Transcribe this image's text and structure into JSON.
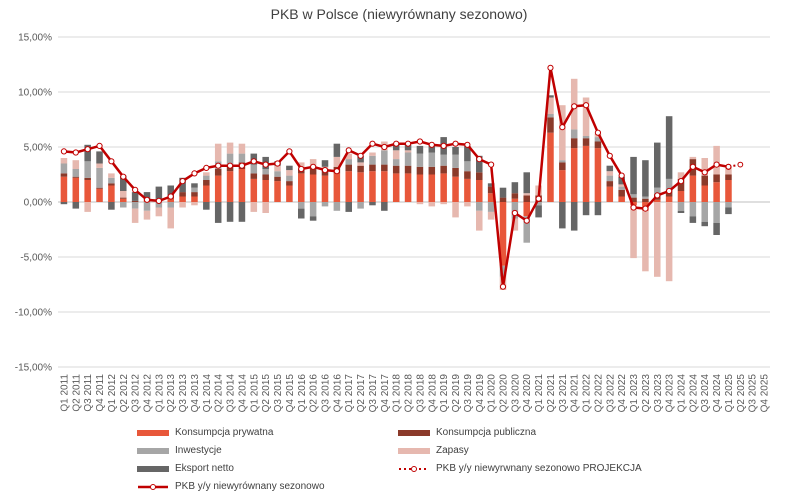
{
  "chart_data": {
    "type": "bar",
    "title": "PKB w Polsce (niewyrównany sezonowo)",
    "stacked": true,
    "ylim": [
      -15,
      15
    ],
    "ytick_step": 5,
    "ytick_labels": [
      "15,00%",
      "10,00%",
      "5,00%",
      "0,00%",
      "-5,00%",
      "-10,00%",
      "-15,00%"
    ],
    "grid": true,
    "legend_placement": "bottom",
    "categories": [
      "Q1 2011",
      "Q2 2011",
      "Q3 2011",
      "Q4 2011",
      "Q1 2012",
      "Q2 2012",
      "Q3 2012",
      "Q4 2012",
      "Q1 2013",
      "Q2 2013",
      "Q3 2013",
      "Q4 2013",
      "Q1 2014",
      "Q2 2014",
      "Q3 2014",
      "Q4 2014",
      "Q1 2015",
      "Q2 2015",
      "Q3 2015",
      "Q4 2015",
      "Q1 2016",
      "Q2 2016",
      "Q3 2016",
      "Q4 2016",
      "Q1 2017",
      "Q2 2017",
      "Q3 2017",
      "Q4 2017",
      "Q1 2018",
      "Q2 2018",
      "Q3 2018",
      "Q4 2018",
      "Q1 2019",
      "Q2 2019",
      "Q3 2019",
      "Q4 2019",
      "Q1 2020",
      "Q2 2020",
      "Q3 2020",
      "Q4 2020",
      "Q1 2021",
      "Q2 2021",
      "Q3 2021",
      "Q4 2021",
      "Q1 2022",
      "Q2 2022",
      "Q3 2022",
      "Q4 2022",
      "Q1 2023",
      "Q2 2023",
      "Q3 2023",
      "Q4 2023",
      "Q1 2024",
      "Q2 2024",
      "Q3 2024",
      "Q4 2024",
      "Q1 2025",
      "Q2 2025",
      "Q3 2025",
      "Q4 2025"
    ],
    "series": [
      {
        "name": "Konsumpcja prywatna",
        "color": "#e8573a",
        "kind": "bar",
        "values": [
          2.3,
          2.2,
          2.0,
          1.2,
          1.5,
          0.3,
          0.0,
          0.2,
          0.1,
          0.3,
          0.5,
          0.5,
          1.5,
          2.4,
          2.8,
          3.0,
          2.1,
          2.0,
          1.9,
          1.5,
          2.6,
          2.5,
          2.4,
          2.6,
          2.8,
          2.7,
          2.8,
          2.8,
          2.6,
          2.6,
          2.5,
          2.5,
          2.6,
          2.3,
          2.1,
          2.0,
          0.8,
          -5.8,
          0.3,
          -1.3,
          0.0,
          6.3,
          2.9,
          4.9,
          5.1,
          4.9,
          1.4,
          0.5,
          -0.3,
          -0.8,
          0.2,
          0.5,
          1.0,
          2.4,
          1.5,
          1.8,
          2.0,
          null,
          null,
          null
        ]
      },
      {
        "name": "Konsumpcja publiczna",
        "color": "#8b3a2a",
        "kind": "bar",
        "values": [
          0.3,
          0.1,
          0.2,
          0.1,
          0.2,
          0.1,
          0.1,
          0.2,
          0.2,
          0.3,
          0.4,
          0.4,
          0.5,
          0.6,
          0.6,
          0.6,
          0.5,
          0.5,
          0.4,
          0.4,
          0.4,
          0.6,
          0.6,
          0.6,
          0.6,
          0.6,
          0.6,
          0.6,
          0.7,
          0.7,
          0.7,
          0.7,
          0.7,
          0.8,
          0.7,
          0.7,
          0.6,
          0.4,
          0.5,
          0.6,
          0.6,
          1.4,
          0.7,
          0.9,
          0.7,
          0.6,
          0.5,
          0.6,
          0.4,
          0.3,
          0.5,
          0.6,
          1.1,
          1.5,
          0.9,
          0.7,
          0.5,
          null,
          null,
          null
        ]
      },
      {
        "name": "Inwestycje",
        "color": "#a6a6a6",
        "kind": "bar",
        "values": [
          0.9,
          0.7,
          1.5,
          1.8,
          0.5,
          -0.5,
          -0.6,
          -0.8,
          -0.5,
          -0.5,
          0.0,
          0.4,
          0.4,
          0.7,
          1.0,
          0.8,
          0.8,
          0.5,
          0.5,
          0.5,
          -0.6,
          -1.3,
          -0.4,
          -0.8,
          0.5,
          -0.6,
          0.8,
          1.3,
          0.6,
          1.2,
          1.2,
          1.3,
          1.0,
          1.2,
          0.9,
          -0.8,
          -0.9,
          -1.0,
          -1.5,
          -2.4,
          -0.3,
          0.3,
          0.2,
          0.8,
          0.2,
          0.4,
          0.5,
          0.3,
          0.3,
          0.2,
          0.6,
          1.0,
          -0.8,
          -1.3,
          -1.8,
          -1.9,
          -0.5,
          null,
          null,
          null
        ]
      },
      {
        "name": "Zapasy",
        "color": "#e6b8af",
        "kind": "bar",
        "values": [
          0.5,
          0.8,
          -0.9,
          0.4,
          0.4,
          0.6,
          -1.3,
          -0.8,
          -0.8,
          -1.9,
          -0.5,
          -0.3,
          0.3,
          1.6,
          1.0,
          0.9,
          -0.9,
          -1.0,
          0.5,
          0.5,
          0.6,
          0.8,
          0.2,
          0.9,
          0.5,
          0.3,
          0.3,
          0.8,
          0.8,
          0.2,
          -0.2,
          -0.4,
          -0.2,
          -1.4,
          -0.4,
          -1.8,
          -0.7,
          -1.2,
          -1.1,
          0.2,
          0.9,
          1.5,
          5.0,
          4.6,
          3.5,
          0.3,
          0.4,
          0.2,
          -4.8,
          -5.5,
          -6.8,
          -7.2,
          0.6,
          0.2,
          1.6,
          2.6,
          0.7,
          null,
          null,
          null
        ]
      },
      {
        "name": "Eksport netto",
        "color": "#666666",
        "kind": "bar",
        "values": [
          -0.2,
          -0.6,
          1.5,
          1.1,
          -0.7,
          1.4,
          0.8,
          0.5,
          1.1,
          0.9,
          1.3,
          0.4,
          -0.7,
          -1.9,
          -1.8,
          -1.8,
          1.0,
          1.1,
          0.4,
          0.4,
          -0.9,
          -0.4,
          0.6,
          1.2,
          -0.9,
          0.6,
          -0.3,
          -0.8,
          0.6,
          0.5,
          0.7,
          0.7,
          1.6,
          0.7,
          1.4,
          1.5,
          0.3,
          0.9,
          1.0,
          1.9,
          -1.1,
          0.2,
          -2.4,
          -2.6,
          -1.2,
          -1.2,
          0.5,
          0.7,
          3.4,
          3.3,
          4.1,
          5.7,
          -0.2,
          -0.6,
          -0.4,
          -1.1,
          -0.6,
          null,
          null,
          null
        ]
      },
      {
        "name": "PKB y/y niewyrównany sezonowo",
        "color": "#c00000",
        "kind": "line",
        "values": [
          4.6,
          4.5,
          4.8,
          5.1,
          3.7,
          2.3,
          1.1,
          0.2,
          0.1,
          0.5,
          1.9,
          2.6,
          3.1,
          3.3,
          3.3,
          3.3,
          3.7,
          3.4,
          3.5,
          4.6,
          3.0,
          3.2,
          2.9,
          2.8,
          4.7,
          4.2,
          5.3,
          5.0,
          5.3,
          5.3,
          5.5,
          5.2,
          5.1,
          5.3,
          5.2,
          3.9,
          3.4,
          -7.7,
          -1.0,
          -1.7,
          0.3,
          12.2,
          6.8,
          8.7,
          8.8,
          6.3,
          4.2,
          2.4,
          -0.5,
          -0.6,
          0.6,
          1.0,
          1.9,
          3.2,
          2.7,
          3.4,
          3.2,
          null,
          null,
          null
        ]
      },
      {
        "name": "PKB y/y niewyrwnany sezonowo PROJEKCJA",
        "color": "#c00000",
        "kind": "dotted",
        "values": [
          null,
          null,
          null,
          null,
          null,
          null,
          null,
          null,
          null,
          null,
          null,
          null,
          null,
          null,
          null,
          null,
          null,
          null,
          null,
          null,
          null,
          null,
          null,
          null,
          null,
          null,
          null,
          null,
          null,
          null,
          null,
          null,
          null,
          null,
          null,
          null,
          null,
          null,
          null,
          null,
          null,
          null,
          null,
          null,
          null,
          null,
          null,
          null,
          null,
          null,
          null,
          null,
          null,
          null,
          null,
          null,
          3.2,
          3.4,
          null,
          null
        ]
      }
    ]
  },
  "legend": [
    {
      "label": "Konsumpcja prywatna",
      "kind": "bar",
      "color": "#e8573a"
    },
    {
      "label": "Konsumpcja publiczna",
      "kind": "bar",
      "color": "#8b3a2a"
    },
    {
      "label": "Inwestycje",
      "kind": "bar",
      "color": "#a6a6a6"
    },
    {
      "label": "Zapasy",
      "kind": "bar",
      "color": "#e6b8af"
    },
    {
      "label": "Eksport netto",
      "kind": "bar",
      "color": "#666666"
    },
    {
      "label": "PKB y/y niewyrwnany sezonowo PROJEKCJA",
      "kind": "dotted",
      "color": "#c00000"
    },
    {
      "label": "PKB y/y niewyrównany sezonowo",
      "kind": "line",
      "color": "#c00000"
    }
  ]
}
